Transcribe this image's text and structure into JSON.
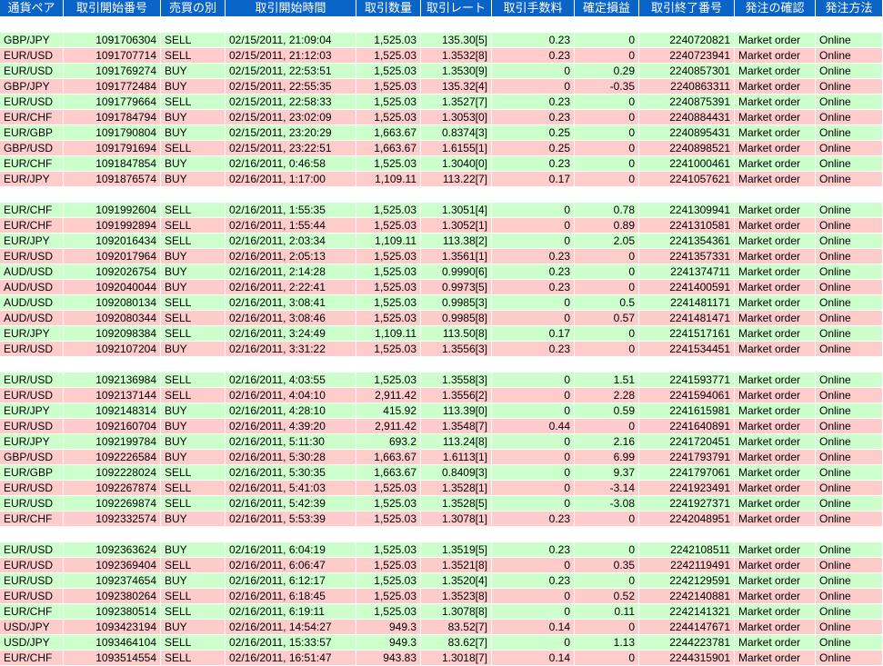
{
  "table": {
    "header": [
      "通貨ペア",
      "取引開始番号",
      "売買の別",
      "取引開始時間",
      "取引数量",
      "取引レート",
      "取引手数料",
      "確定損益",
      "取引終了番号",
      "発注の確認",
      "発注方法"
    ],
    "groups": [
      [
        [
          "GBP/JPY",
          "1091706304",
          "SELL",
          "02/15/2011, 21:09:04",
          "1,525.03",
          "135.30[5]",
          "0.23",
          "0",
          "2240720821",
          "Market order",
          "Online"
        ],
        [
          "EUR/USD",
          "1091707714",
          "SELL",
          "02/15/2011, 21:12:03",
          "1,525.03",
          "1.3532[8]",
          "0.23",
          "0",
          "2240723941",
          "Market order",
          "Online"
        ],
        [
          "EUR/USD",
          "1091769274",
          "BUY",
          "02/15/2011, 22:53:51",
          "1,525.03",
          "1.3530[9]",
          "0",
          "0.29",
          "2240857301",
          "Market order",
          "Online"
        ],
        [
          "GBP/JPY",
          "1091772484",
          "BUY",
          "02/15/2011, 22:55:35",
          "1,525.03",
          "135.32[4]",
          "0",
          "-0.35",
          "2240863311",
          "Market order",
          "Online"
        ],
        [
          "EUR/USD",
          "1091779664",
          "SELL",
          "02/15/2011, 22:58:33",
          "1,525.03",
          "1.3527[7]",
          "0.23",
          "0",
          "2240875391",
          "Market order",
          "Online"
        ],
        [
          "EUR/CHF",
          "1091784794",
          "BUY",
          "02/15/2011, 23:02:09",
          "1,525.03",
          "1.3053[0]",
          "0.23",
          "0",
          "2240884431",
          "Market order",
          "Online"
        ],
        [
          "EUR/GBP",
          "1091790804",
          "BUY",
          "02/15/2011, 23:20:29",
          "1,663.67",
          "0.8374[3]",
          "0.25",
          "0",
          "2240895431",
          "Market order",
          "Online"
        ],
        [
          "GBP/USD",
          "1091791694",
          "SELL",
          "02/15/2011, 23:22:51",
          "1,663.67",
          "1.6155[1]",
          "0.25",
          "0",
          "2240898521",
          "Market order",
          "Online"
        ],
        [
          "EUR/CHF",
          "1091847854",
          "BUY",
          "02/16/2011, 0:46:58",
          "1,525.03",
          "1.3040[0]",
          "0.23",
          "0",
          "2241000461",
          "Market order",
          "Online"
        ],
        [
          "EUR/JPY",
          "1091876574",
          "BUY",
          "02/16/2011, 1:17:00",
          "1,109.11",
          "113.22[7]",
          "0.17",
          "0",
          "2241057621",
          "Market order",
          "Online"
        ]
      ],
      [
        [
          "EUR/CHF",
          "1091992604",
          "SELL",
          "02/16/2011, 1:55:35",
          "1,525.03",
          "1.3051[4]",
          "0",
          "0.78",
          "2241309941",
          "Market order",
          "Online"
        ],
        [
          "EUR/CHF",
          "1091992894",
          "SELL",
          "02/16/2011, 1:55:44",
          "1,525.03",
          "1.3052[1]",
          "0",
          "0.89",
          "2241310581",
          "Market order",
          "Online"
        ],
        [
          "EUR/JPY",
          "1092016434",
          "SELL",
          "02/16/2011, 2:03:34",
          "1,109.11",
          "113.38[2]",
          "0",
          "2.05",
          "2241354361",
          "Market order",
          "Online"
        ],
        [
          "EUR/USD",
          "1092017964",
          "BUY",
          "02/16/2011, 2:05:13",
          "1,525.03",
          "1.3561[1]",
          "0.23",
          "0",
          "2241357331",
          "Market order",
          "Online"
        ],
        [
          "AUD/USD",
          "1092026754",
          "BUY",
          "02/16/2011, 2:14:28",
          "1,525.03",
          "0.9990[6]",
          "0.23",
          "0",
          "2241374711",
          "Market order",
          "Online"
        ],
        [
          "AUD/USD",
          "1092040044",
          "BUY",
          "02/16/2011, 2:22:41",
          "1,525.03",
          "0.9973[5]",
          "0.23",
          "0",
          "2241400591",
          "Market order",
          "Online"
        ],
        [
          "AUD/USD",
          "1092080134",
          "SELL",
          "02/16/2011, 3:08:41",
          "1,525.03",
          "0.9985[3]",
          "0",
          "0.5",
          "2241481171",
          "Market order",
          "Online"
        ],
        [
          "AUD/USD",
          "1092080344",
          "SELL",
          "02/16/2011, 3:08:46",
          "1,525.03",
          "0.9985[8]",
          "0",
          "0.57",
          "2241481471",
          "Market order",
          "Online"
        ],
        [
          "EUR/JPY",
          "1092098384",
          "SELL",
          "02/16/2011, 3:24:49",
          "1,109.11",
          "113.50[8]",
          "0.17",
          "0",
          "2241517161",
          "Market order",
          "Online"
        ],
        [
          "EUR/USD",
          "1092107204",
          "BUY",
          "02/16/2011, 3:31:22",
          "1,525.03",
          "1.3556[3]",
          "0.23",
          "0",
          "2241534451",
          "Market order",
          "Online"
        ]
      ],
      [
        [
          "EUR/USD",
          "1092136984",
          "SELL",
          "02/16/2011, 4:03:55",
          "1,525.03",
          "1.3558[3]",
          "0",
          "1.51",
          "2241593771",
          "Market order",
          "Online"
        ],
        [
          "EUR/USD",
          "1092137144",
          "SELL",
          "02/16/2011, 4:04:10",
          "2,911.42",
          "1.3556[2]",
          "0",
          "2.28",
          "2241594061",
          "Market order",
          "Online"
        ],
        [
          "EUR/JPY",
          "1092148314",
          "BUY",
          "02/16/2011, 4:28:10",
          "415.92",
          "113.39[0]",
          "0",
          "0.59",
          "2241615981",
          "Market order",
          "Online"
        ],
        [
          "EUR/USD",
          "1092160704",
          "BUY",
          "02/16/2011, 4:39:20",
          "2,911.42",
          "1.3548[7]",
          "0.44",
          "0",
          "2241640891",
          "Market order",
          "Online"
        ],
        [
          "EUR/JPY",
          "1092199784",
          "BUY",
          "02/16/2011, 5:11:30",
          "693.2",
          "113.24[8]",
          "0",
          "2.16",
          "2241720451",
          "Market order",
          "Online"
        ],
        [
          "GBP/USD",
          "1092226584",
          "BUY",
          "02/16/2011, 5:30:28",
          "1,663.67",
          "1.6113[1]",
          "0",
          "6.99",
          "2241793791",
          "Market order",
          "Online"
        ],
        [
          "EUR/GBP",
          "1092228024",
          "SELL",
          "02/16/2011, 5:30:35",
          "1,663.67",
          "0.8409[3]",
          "0",
          "9.37",
          "2241797061",
          "Market order",
          "Online"
        ],
        [
          "EUR/USD",
          "1092267874",
          "SELL",
          "02/16/2011, 5:41:03",
          "1,525.03",
          "1.3528[1]",
          "0",
          "-3.14",
          "2241923491",
          "Market order",
          "Online"
        ],
        [
          "EUR/USD",
          "1092269874",
          "SELL",
          "02/16/2011, 5:42:39",
          "1,525.03",
          "1.3528[5]",
          "0",
          "-3.08",
          "2241927371",
          "Market order",
          "Online"
        ],
        [
          "EUR/CHF",
          "1092332574",
          "BUY",
          "02/16/2011, 5:53:39",
          "1,525.03",
          "1.3078[1]",
          "0.23",
          "0",
          "2242048951",
          "Market order",
          "Online"
        ]
      ],
      [
        [
          "EUR/USD",
          "1092363624",
          "BUY",
          "02/16/2011, 6:04:19",
          "1,525.03",
          "1.3519[5]",
          "0.23",
          "0",
          "2242108511",
          "Market order",
          "Online"
        ],
        [
          "EUR/USD",
          "1092369404",
          "SELL",
          "02/16/2011, 6:06:47",
          "1,525.03",
          "1.3521[8]",
          "0",
          "0.35",
          "2242119491",
          "Market order",
          "Online"
        ],
        [
          "EUR/USD",
          "1092374654",
          "BUY",
          "02/16/2011, 6:12:17",
          "1,525.03",
          "1.3520[4]",
          "0.23",
          "0",
          "2242129591",
          "Market order",
          "Online"
        ],
        [
          "EUR/USD",
          "1092380264",
          "SELL",
          "02/16/2011, 6:18:45",
          "1,525.03",
          "1.3523[8]",
          "0",
          "0.52",
          "2242140881",
          "Market order",
          "Online"
        ],
        [
          "EUR/CHF",
          "1092380514",
          "SELL",
          "02/16/2011, 6:19:11",
          "1,525.03",
          "1.3078[8]",
          "0",
          "0.11",
          "2242141321",
          "Market order",
          "Online"
        ],
        [
          "USD/JPY",
          "1093423194",
          "BUY",
          "02/16/2011, 14:54:27",
          "949.3",
          "83.52[7]",
          "0.14",
          "0",
          "2244147671",
          "Market order",
          "Online"
        ],
        [
          "USD/JPY",
          "1093464104",
          "SELL",
          "02/16/2011, 15:33:57",
          "949.3",
          "83.62[7]",
          "0",
          "1.13",
          "2244223781",
          "Market order",
          "Online"
        ],
        [
          "EUR/CHF",
          "1093514554",
          "SELL",
          "02/16/2011, 16:51:47",
          "943.83",
          "1.3018[7]",
          "0.14",
          "0",
          "2244315901",
          "Market order",
          "Online"
        ]
      ]
    ]
  }
}
